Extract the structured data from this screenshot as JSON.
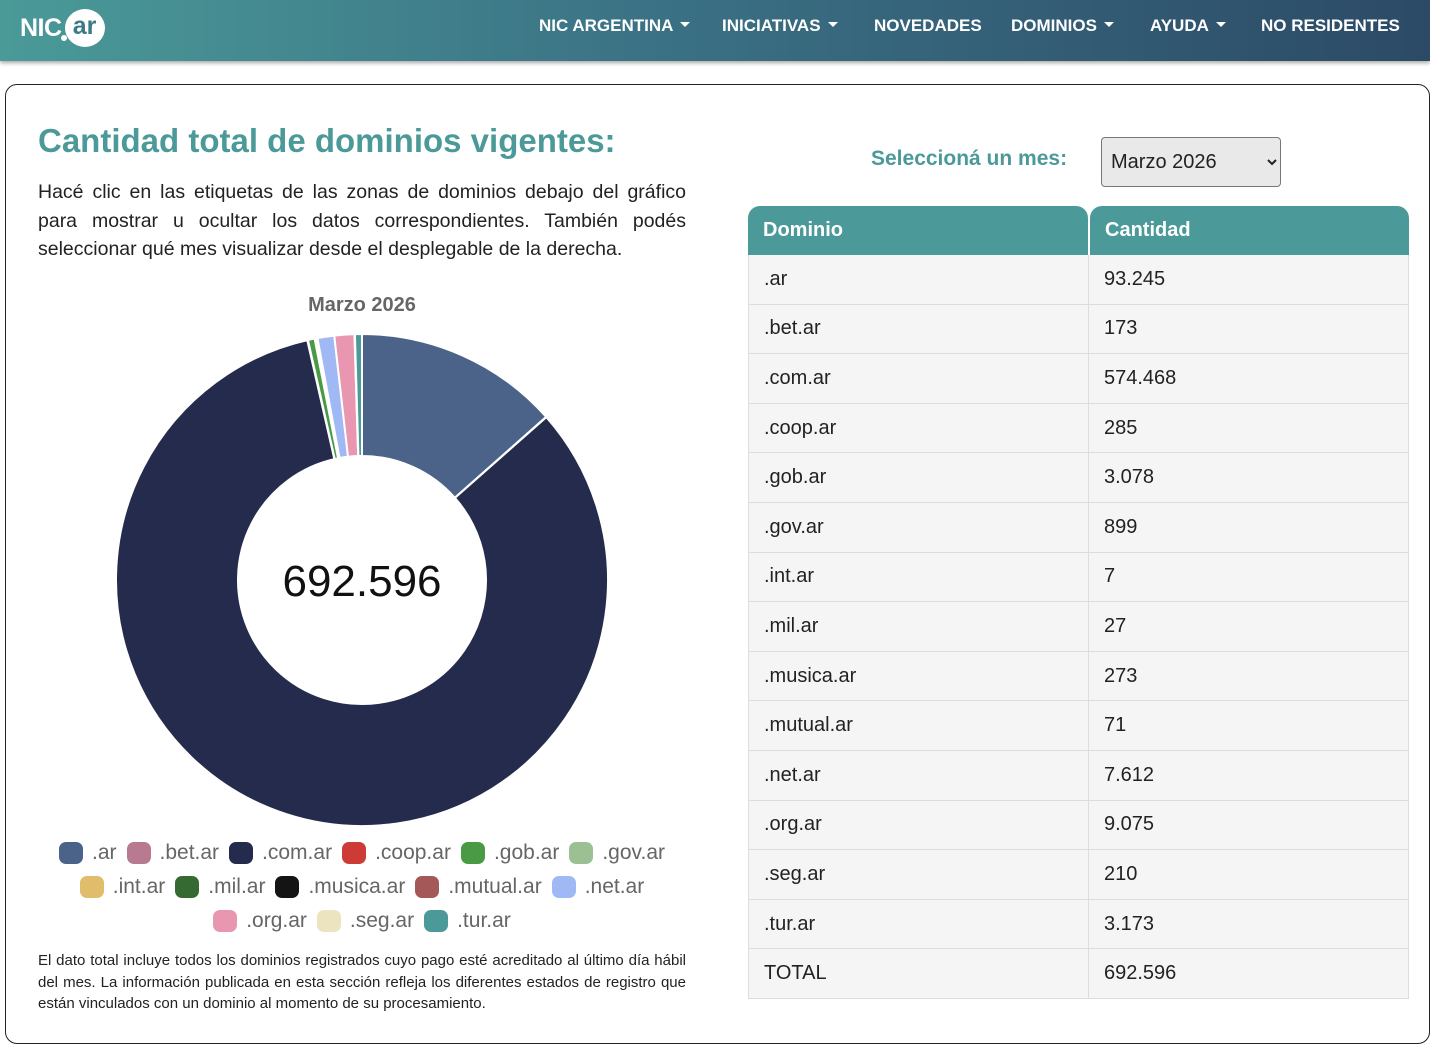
{
  "brand": {
    "logo_left": "NIC",
    "logo_right": "ar"
  },
  "nav": [
    {
      "label": "NIC ARGENTINA",
      "dropdown": true
    },
    {
      "label": "INICIATIVAS",
      "dropdown": true
    },
    {
      "label": "NOVEDADES",
      "dropdown": false
    },
    {
      "label": "DOMINIOS",
      "dropdown": true
    },
    {
      "label": "AYUDA",
      "dropdown": true
    },
    {
      "label": "NO RESIDENTES",
      "dropdown": false
    }
  ],
  "page": {
    "title": "Cantidad total de dominios vigentes:",
    "intro": "Hacé clic en las etiquetas de las zonas de dominios debajo del gráfico para mostrar u ocultar los datos correspondientes. También podés seleccionar qué mes visualizar desde el desplegable de la derecha.",
    "footnote": "El dato total incluye todos los dominios registrados cuyo pago esté acreditado al último día hábil del mes. La información publicada en esta sección refleja los diferentes estados de registro que están vinculados con un dominio al momento de su procesamiento."
  },
  "month_selector": {
    "label": "Seleccioná un mes:",
    "selected": "Marzo 2026"
  },
  "table": {
    "headers": [
      "Dominio",
      "Cantidad"
    ],
    "rows": [
      [
        ".ar",
        "93.245"
      ],
      [
        ".bet.ar",
        "173"
      ],
      [
        ".com.ar",
        "574.468"
      ],
      [
        ".coop.ar",
        "285"
      ],
      [
        ".gob.ar",
        "3.078"
      ],
      [
        ".gov.ar",
        "899"
      ],
      [
        ".int.ar",
        "7"
      ],
      [
        ".mil.ar",
        "27"
      ],
      [
        ".musica.ar",
        "273"
      ],
      [
        ".mutual.ar",
        "71"
      ],
      [
        ".net.ar",
        "7.612"
      ],
      [
        ".org.ar",
        "9.075"
      ],
      [
        ".seg.ar",
        "210"
      ],
      [
        ".tur.ar",
        "3.173"
      ],
      [
        "TOTAL",
        "692.596"
      ]
    ]
  },
  "chart_data": {
    "type": "pie",
    "title": "Marzo 2026",
    "center_label": "692.596",
    "categories": [
      ".ar",
      ".bet.ar",
      ".com.ar",
      ".coop.ar",
      ".gob.ar",
      ".gov.ar",
      ".int.ar",
      ".mil.ar",
      ".musica.ar",
      ".mutual.ar",
      ".net.ar",
      ".org.ar",
      ".seg.ar",
      ".tur.ar"
    ],
    "values": [
      93245,
      173,
      574468,
      285,
      3078,
      899,
      7,
      27,
      273,
      71,
      7612,
      9075,
      210,
      3173
    ],
    "colors": [
      "#4b6389",
      "#b87a90",
      "#252b4c",
      "#cc3b36",
      "#4a9a45",
      "#9cbf93",
      "#e0bd6b",
      "#356b33",
      "#141414",
      "#a55858",
      "#a0b9f5",
      "#e996b0",
      "#ece3bf",
      "#4b9a99"
    ],
    "legend_placement": "bottom"
  }
}
